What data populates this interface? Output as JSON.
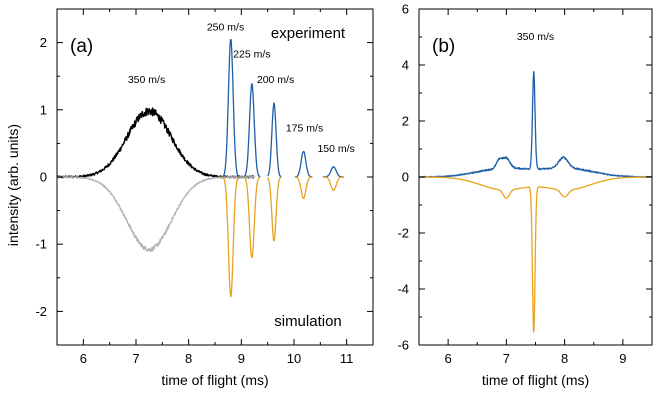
{
  "ylabel_shared": "intensity (arb. units)",
  "colors": {
    "experiment": "#1f5fa8",
    "simulation": "#e8a21d",
    "exp_350": "#000000",
    "sim_350": "#b4b4b4",
    "axis": "#000000"
  },
  "chart_data": [
    {
      "type": "line",
      "panel_label": "(a)",
      "xlabel": "time of flight (ms)",
      "ylabel": "intensity (arb. units)",
      "xlim": [
        5.5,
        11.5
      ],
      "ylim": [
        -2.5,
        2.5
      ],
      "xticks": [
        6,
        7,
        8,
        9,
        10,
        11
      ],
      "yticks": [
        -2,
        -1,
        0,
        1,
        2
      ],
      "ytick_labels": [
        "-2",
        "-1",
        "0",
        "1",
        "2"
      ],
      "text_labels": [
        "experiment",
        "simulation"
      ],
      "annotations": [
        {
          "text": "350 m/s",
          "x": 7.2,
          "y": 1.4
        },
        {
          "text": "250 m/s",
          "x": 8.7,
          "y": 2.18
        },
        {
          "text": "225 m/s",
          "x": 9.2,
          "y": 1.78
        },
        {
          "text": "200 m/s",
          "x": 9.65,
          "y": 1.4
        },
        {
          "text": "175 m/s",
          "x": 10.2,
          "y": 0.68
        },
        {
          "text": "150 m/s",
          "x": 10.8,
          "y": 0.37
        }
      ],
      "series": [
        {
          "role": "experiment-350",
          "color": "#000000",
          "gaussians": [
            {
              "a": 0.98,
              "mu": 7.25,
              "sigma": 0.42
            }
          ],
          "range": [
            5.5,
            9.25
          ],
          "noise": 0.05
        },
        {
          "role": "simulation-350",
          "color": "#b4b4b4",
          "gaussians": [
            {
              "a": -1.08,
              "mu": 7.25,
              "sigma": 0.42
            }
          ],
          "range": [
            5.5,
            9.25
          ],
          "noise": 0.025
        },
        {
          "role": "experiment-250",
          "color": "#1f5fa8",
          "gaussians": [
            {
              "a": 2.05,
              "mu": 8.8,
              "sigma": 0.045
            }
          ],
          "range": [
            8.62,
            8.98
          ],
          "noise": 0.015
        },
        {
          "role": "experiment-225",
          "color": "#1f5fa8",
          "gaussians": [
            {
              "a": 1.38,
              "mu": 9.2,
              "sigma": 0.045
            }
          ],
          "range": [
            9.06,
            9.36
          ],
          "noise": 0.015
        },
        {
          "role": "experiment-200",
          "color": "#1f5fa8",
          "gaussians": [
            {
              "a": 1.1,
              "mu": 9.62,
              "sigma": 0.04
            }
          ],
          "range": [
            9.5,
            9.76
          ],
          "noise": 0.015
        },
        {
          "role": "experiment-175",
          "color": "#1f5fa8",
          "gaussians": [
            {
              "a": 0.38,
              "mu": 10.18,
              "sigma": 0.045
            }
          ],
          "range": [
            10.02,
            10.35
          ],
          "noise": 0.012
        },
        {
          "role": "experiment-150",
          "color": "#1f5fa8",
          "gaussians": [
            {
              "a": 0.15,
              "mu": 10.75,
              "sigma": 0.05
            }
          ],
          "range": [
            10.55,
            10.95
          ],
          "noise": 0.012
        },
        {
          "role": "simulation-250",
          "color": "#e8a21d",
          "gaussians": [
            {
              "a": -1.78,
              "mu": 8.8,
              "sigma": 0.045
            }
          ],
          "range": [
            8.62,
            8.98
          ],
          "noise": 0
        },
        {
          "role": "simulation-225",
          "color": "#e8a21d",
          "gaussians": [
            {
              "a": -1.2,
              "mu": 9.2,
              "sigma": 0.045
            }
          ],
          "range": [
            9.06,
            9.36
          ],
          "noise": 0
        },
        {
          "role": "simulation-200",
          "color": "#e8a21d",
          "gaussians": [
            {
              "a": -0.95,
              "mu": 9.62,
              "sigma": 0.04
            }
          ],
          "range": [
            9.5,
            9.76
          ],
          "noise": 0
        },
        {
          "role": "simulation-175",
          "color": "#e8a21d",
          "gaussians": [
            {
              "a": -0.32,
              "mu": 10.18,
              "sigma": 0.045
            }
          ],
          "range": [
            10.02,
            10.35
          ],
          "noise": 0
        },
        {
          "role": "simulation-150",
          "color": "#e8a21d",
          "gaussians": [
            {
              "a": -0.2,
              "mu": 10.75,
              "sigma": 0.05
            }
          ],
          "range": [
            10.55,
            10.95
          ],
          "noise": 0
        }
      ]
    },
    {
      "type": "line",
      "panel_label": "(b)",
      "xlabel": "time of flight (ms)",
      "ylabel": "",
      "xlim": [
        5.5,
        9.5
      ],
      "ylim": [
        -6,
        6
      ],
      "xticks": [
        6,
        7,
        8,
        9
      ],
      "yticks": [
        -6,
        -4,
        -2,
        0,
        2,
        4,
        6
      ],
      "ytick_labels": [
        "-6",
        "-4",
        "-2",
        "0",
        "2",
        "4",
        "6"
      ],
      "annotations": [
        {
          "text": "350 m/s",
          "x": 7.5,
          "y": 4.9
        }
      ],
      "series": [
        {
          "role": "experiment",
          "color": "#1f5fa8",
          "gaussians": [
            {
              "a": 0.3,
              "mu": 6.95,
              "sigma": 0.45
            },
            {
              "a": 0.35,
              "mu": 7.0,
              "sigma": 0.06
            },
            {
              "a": 0.3,
              "mu": 6.88,
              "sigma": 0.05
            },
            {
              "a": 0.3,
              "mu": 8.05,
              "sigma": 0.45
            },
            {
              "a": 0.38,
              "mu": 7.98,
              "sigma": 0.08
            },
            {
              "a": 3.45,
              "mu": 7.47,
              "sigma": 0.022
            }
          ],
          "range": [
            5.5,
            9.5
          ],
          "noise": 0.05
        },
        {
          "role": "simulation",
          "color": "#e8a21d",
          "gaussians": [
            {
              "a": -0.45,
              "mu": 6.95,
              "sigma": 0.4
            },
            {
              "a": -0.3,
              "mu": 7.0,
              "sigma": 0.05
            },
            {
              "a": -0.45,
              "mu": 8.05,
              "sigma": 0.4
            },
            {
              "a": -0.25,
              "mu": 8.0,
              "sigma": 0.06
            },
            {
              "a": -5.2,
              "mu": 7.47,
              "sigma": 0.022
            }
          ],
          "range": [
            5.5,
            9.5
          ],
          "noise": 0
        }
      ]
    }
  ]
}
